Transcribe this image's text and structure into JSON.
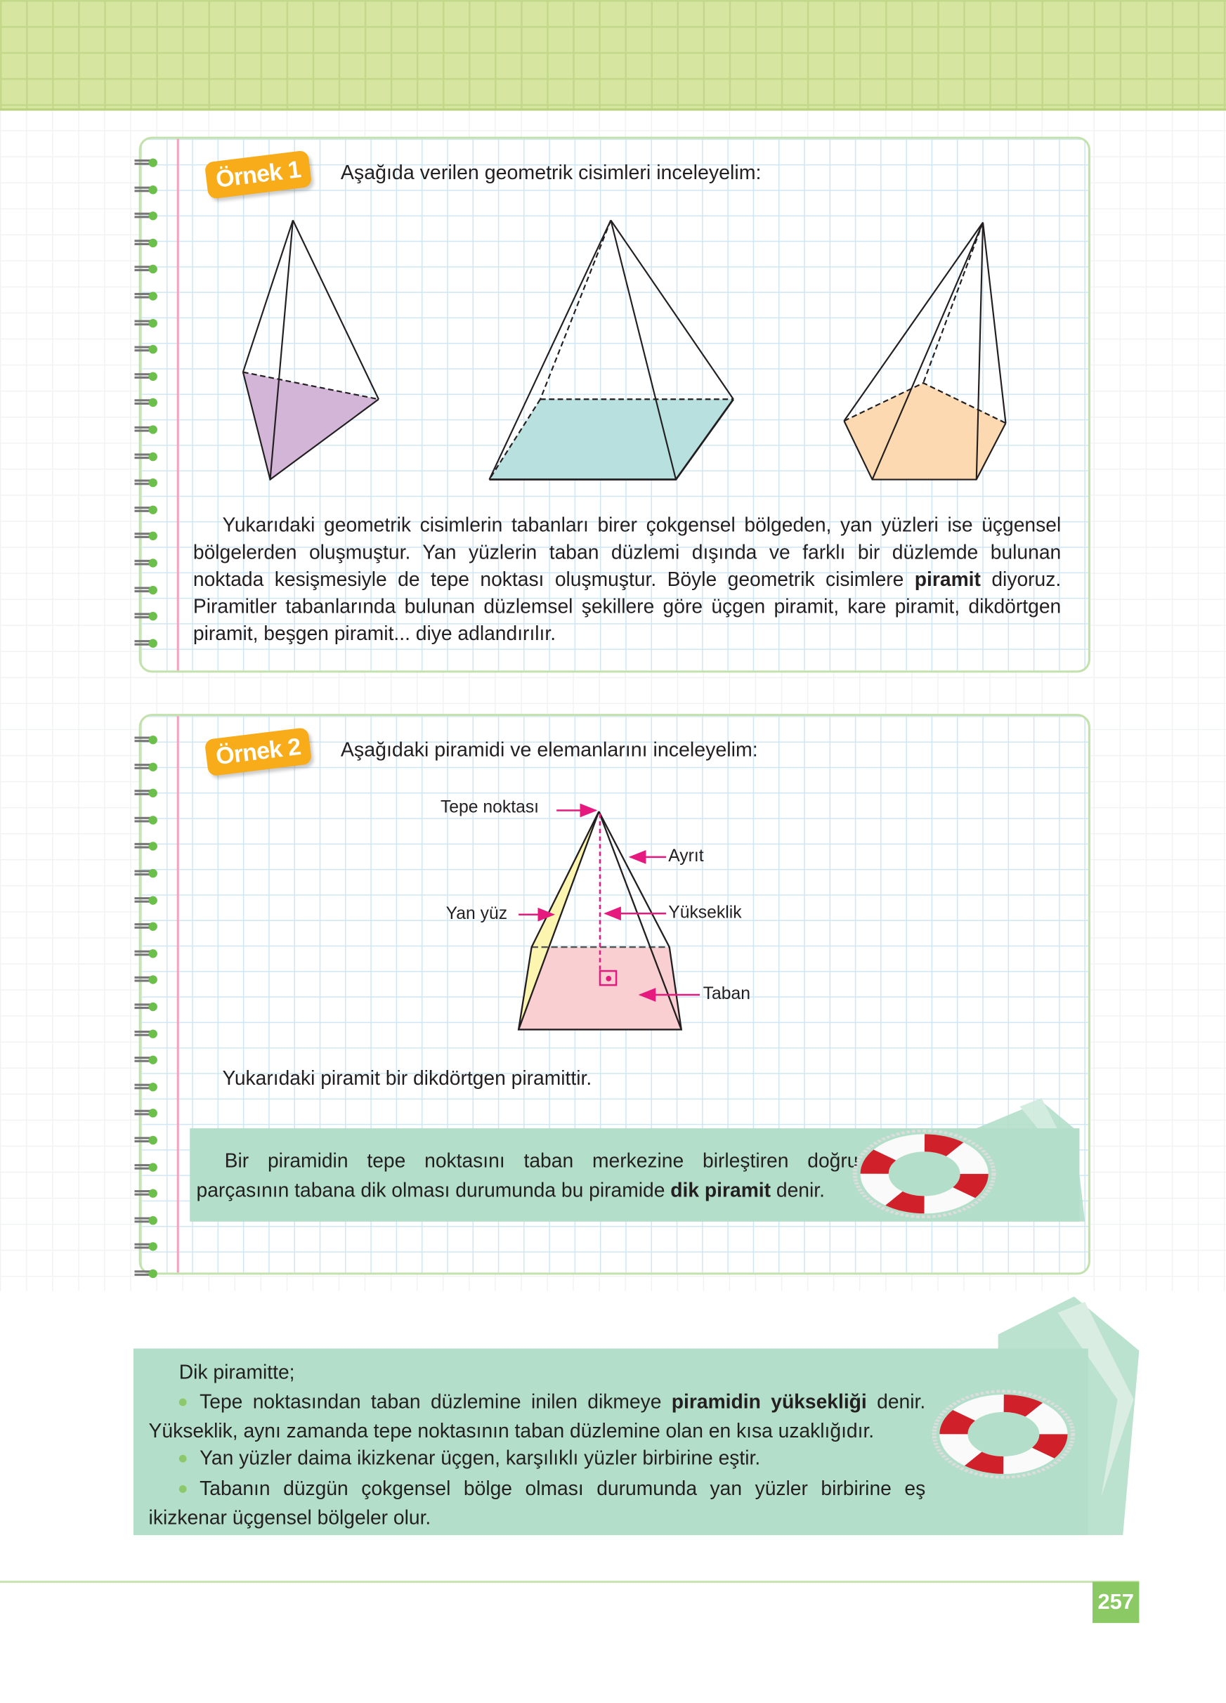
{
  "colors": {
    "accent_orange": "#f8ac1a",
    "box_border": "#c3e1ad",
    "info_bg": "#b3dfca",
    "page_number_bg": "#8bc965",
    "label_arrow": "#e6197f",
    "triangle_base": "#d3b5d8",
    "square_base": "#b7e0df",
    "pentagon_base": "#fcd9b0",
    "side_face": "#fbf5b0",
    "rect_base": "#f9cfd2"
  },
  "example1": {
    "badge": "Örnek 1",
    "intro": "Aşağıda verilen geometrik cisimleri inceleyelim:",
    "paragraph_before": "Yukarıdaki geometrik cisimlerin tabanları birer çokgensel bölgeden, yan yüzleri ise üçgensel bölgelerden oluşmuştur. Yan yüzlerin taban düzlemi dışında ve farklı bir düzlemde bulunan noktada kesişmesiyle de tepe noktası oluşmuştur. Böyle geometrik cisimlere ",
    "paragraph_bold": "piramit",
    "paragraph_after": " diyoruz. Piramitler tabanlarında bulunan düzlemsel şekillere göre üçgen piramit, kare piramit, dikdörtgen piramit, beşgen piramit... diye adlandırılır."
  },
  "example2": {
    "badge": "Örnek 2",
    "intro": "Aşağıdaki piramidi ve elemanlarını inceleyelim:",
    "labels": {
      "apex": "Tepe noktası",
      "edge": "Ayrıt",
      "face": "Yan yüz",
      "height": "Yükseklik",
      "base": "Taban"
    },
    "note": "Yukarıdaki piramit bir dikdörtgen piramittir.",
    "info_before": "Bir piramidin tepe noktasını taban merkezine birleştiren doğru parçasının tabana dik olması durumunda bu piramide ",
    "info_bold": "dik piramit",
    "info_after": " denir."
  },
  "summary": {
    "heading": "Dik piramitte;",
    "b1_before": "Tepe noktasından taban düzlemine inilen dikmeye ",
    "b1_bold": "piramidin yüksekliği",
    "b1_after": " denir. Yükseklik, aynı zamanda tepe noktasının taban düzlemine olan en kısa uzaklığıdır.",
    "b2": "Yan yüzler daima ikizkenar üçgen, karşılıklı yüzler birbirine eştir.",
    "b3": "Tabanın düzgün çokgensel bölge olması durumunda yan yüzler birbirine eş ikizkenar üçgensel bölgeler olur."
  },
  "icons": [
    "spiral-binding-icon",
    "lifebuoy-icon"
  ],
  "page_number": "257"
}
